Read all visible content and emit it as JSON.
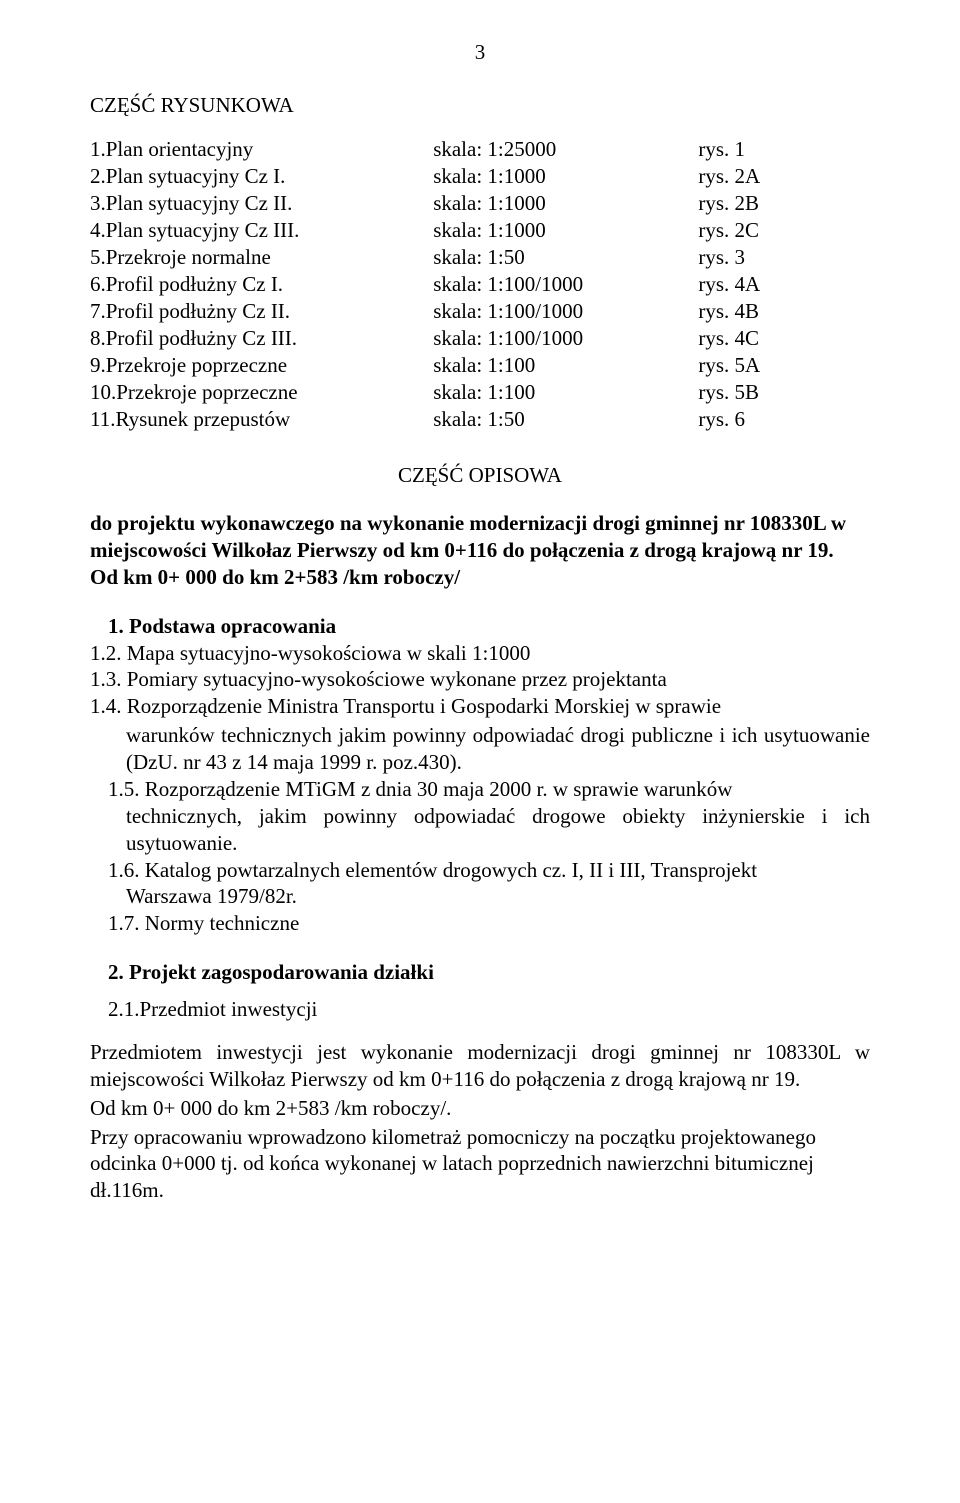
{
  "page_number": "3",
  "section_title_drawing": "CZĘŚĆ RYSUNKOWA",
  "toc": [
    {
      "label": "1.Plan orientacyjny",
      "scale": "skala: 1:25000",
      "rys": "rys. 1"
    },
    {
      "label": "2.Plan sytuacyjny Cz I.",
      "scale": "skala: 1:1000",
      "rys": "rys. 2A"
    },
    {
      "label": "3.Plan sytuacyjny Cz II.",
      "scale": "skala: 1:1000",
      "rys": "rys. 2B"
    },
    {
      "label": "4.Plan sytuacyjny Cz III.",
      "scale": "skala: 1:1000",
      "rys": "rys. 2C"
    },
    {
      "label": "5.Przekroje normalne",
      "scale": "skala: 1:50",
      "rys": "rys. 3"
    },
    {
      "label": "6.Profil podłużny Cz I.",
      "scale": "skala: 1:100/1000",
      "rys": "rys. 4A"
    },
    {
      "label": "7.Profil podłużny Cz II.",
      "scale": "skala: 1:100/1000",
      "rys": "rys. 4B"
    },
    {
      "label": "8.Profil podłużny Cz III.",
      "scale": "skala: 1:100/1000",
      "rys": "rys. 4C"
    },
    {
      "label": "9.Przekroje poprzeczne",
      "scale": "skala: 1:100",
      "rys": "rys. 5A"
    },
    {
      "label": "10.Przekroje poprzeczne",
      "scale": "skala: 1:100",
      "rys": "rys. 5B"
    },
    {
      "label": "11.Rysunek przepustów",
      "scale": "skala: 1:50",
      "rys": "rys. 6"
    }
  ],
  "section_title_descriptive": "CZĘŚĆ OPISOWA",
  "intro_bold": "do projektu wykonawczego na wykonanie modernizacji drogi gminnej nr 108330L w miejscowości Wilkołaz  Pierwszy od km 0+116 do połączenia z drogą krajową nr 19.\nOd km 0+ 000 do km 2+583 /km roboczy/",
  "list1_header": "1.  Podstawa opracowania",
  "list1": {
    "i2": "1.2. Mapa sytuacyjno-wysokościowa w skali 1:1000",
    "i3": "1.3. Pomiary sytuacyjno-wysokościowe wykonane przez projektanta",
    "i4_line": "1.4. Rozporządzenie Ministra Transportu i Gospodarki Morskiej w sprawie",
    "i4_cont": "warunków technicznych jakim powinny odpowiadać drogi publiczne i ich usytuowanie (DzU. nr 43 z 14 maja 1999 r. poz.430).",
    "i5_line": "1.5. Rozporządzenie MTiGM z dnia 30 maja 2000 r. w sprawie warunków",
    "i5_cont": "technicznych, jakim powinny odpowiadać drogowe obiekty inżynierskie i ich usytuowanie.",
    "i6_line": "1.6. Katalog powtarzalnych elementów drogowych cz. I, II i III, Transprojekt",
    "i6_cont": "Warszawa 1979/82r.",
    "i7": "1.7. Normy techniczne"
  },
  "list2_header": "2.  Projekt zagospodarowania działki",
  "list2_sub": "2.1.Przedmiot inwestycji",
  "para1": "Przedmiotem inwestycji jest wykonanie modernizacji drogi gminnej nr 108330L w miejscowości Wilkołaz  Pierwszy od km 0+116 do połączenia z drogą krajową nr 19.",
  "para2": "Od km 0+ 000 do km 2+583 /km roboczy/.",
  "para3": "Przy opracowaniu wprowadzono kilometraż pomocniczy na początku projektowanego odcinka 0+000 tj. od końca wykonanej w latach poprzednich nawierzchni bitumicznej dł.116m."
}
